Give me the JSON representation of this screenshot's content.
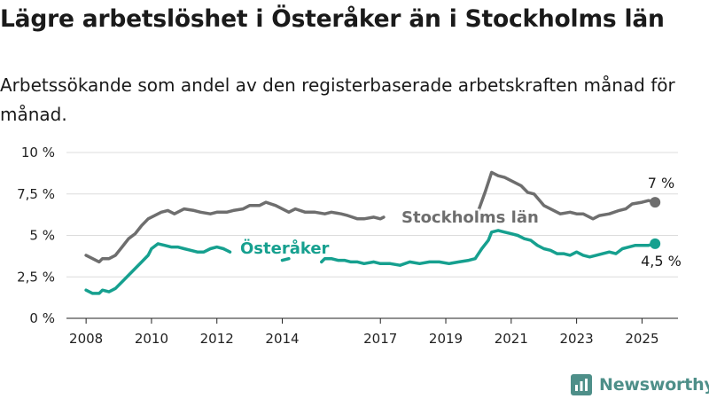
{
  "title": "Lägre arbetslöshet i Österåker än i Stockholms län",
  "subtitle": "Arbetssökande som andel av den registerbaserade arbetskraften månad för månad.",
  "brand": {
    "name": "Newsworthy",
    "icon": "bar-chart-logo-icon",
    "color": "#4e8f89"
  },
  "chart_data": {
    "type": "line",
    "y_ticks": [
      "0 %",
      "2,5 %",
      "5 %",
      "7,5 %",
      "10 %"
    ],
    "y_values": [
      0,
      2.5,
      5,
      7.5,
      10
    ],
    "ylim": [
      0,
      10
    ],
    "x_ticks": [
      "2008",
      "2010",
      "2012",
      "2014",
      "2017",
      "2019",
      "2021",
      "2023",
      "2025"
    ],
    "x_tick_values": [
      2008,
      2010,
      2012,
      2014,
      2017,
      2019,
      2021,
      2023,
      2025
    ],
    "xlim": [
      2007.4,
      2026.1
    ],
    "grid": true,
    "series": [
      {
        "name": "Stockholms län",
        "color": "#6e6e6e",
        "end_label": "7 %",
        "segments": [
          [
            [
              2008.0,
              3.8
            ],
            [
              2008.2,
              3.6
            ],
            [
              2008.4,
              3.4
            ],
            [
              2008.5,
              3.6
            ],
            [
              2008.7,
              3.6
            ],
            [
              2008.9,
              3.8
            ],
            [
              2009.1,
              4.3
            ],
            [
              2009.3,
              4.8
            ],
            [
              2009.5,
              5.1
            ],
            [
              2009.7,
              5.6
            ],
            [
              2009.9,
              6.0
            ],
            [
              2010.1,
              6.2
            ],
            [
              2010.3,
              6.4
            ],
            [
              2010.5,
              6.5
            ],
            [
              2010.7,
              6.3
            ],
            [
              2011.0,
              6.6
            ],
            [
              2011.3,
              6.5
            ],
            [
              2011.5,
              6.4
            ],
            [
              2011.8,
              6.3
            ],
            [
              2012.0,
              6.4
            ],
            [
              2012.3,
              6.4
            ],
            [
              2012.5,
              6.5
            ],
            [
              2012.8,
              6.6
            ],
            [
              2013.0,
              6.8
            ],
            [
              2013.3,
              6.8
            ],
            [
              2013.5,
              7.0
            ],
            [
              2013.8,
              6.8
            ],
            [
              2014.0,
              6.6
            ],
            [
              2014.2,
              6.4
            ],
            [
              2014.4,
              6.6
            ],
            [
              2014.7,
              6.4
            ],
            [
              2015.0,
              6.4
            ],
            [
              2015.3,
              6.3
            ],
            [
              2015.5,
              6.4
            ],
            [
              2015.8,
              6.3
            ],
            [
              2016.0,
              6.2
            ],
            [
              2016.3,
              6.0
            ],
            [
              2016.5,
              6.0
            ],
            [
              2016.8,
              6.1
            ],
            [
              2017.0,
              6.0
            ],
            [
              2017.1,
              6.1
            ]
          ],
          [
            [
              2020.0,
              6.5
            ],
            [
              2020.2,
              7.6
            ],
            [
              2020.4,
              8.8
            ],
            [
              2020.6,
              8.6
            ],
            [
              2020.8,
              8.5
            ],
            [
              2021.0,
              8.3
            ],
            [
              2021.3,
              8.0
            ],
            [
              2021.5,
              7.6
            ],
            [
              2021.7,
              7.5
            ],
            [
              2022.0,
              6.8
            ],
            [
              2022.2,
              6.6
            ],
            [
              2022.5,
              6.3
            ],
            [
              2022.8,
              6.4
            ],
            [
              2023.0,
              6.3
            ],
            [
              2023.2,
              6.3
            ],
            [
              2023.5,
              6.0
            ],
            [
              2023.7,
              6.2
            ],
            [
              2024.0,
              6.3
            ],
            [
              2024.3,
              6.5
            ],
            [
              2024.5,
              6.6
            ],
            [
              2024.7,
              6.9
            ],
            [
              2025.0,
              7.0
            ],
            [
              2025.2,
              7.1
            ],
            [
              2025.4,
              7.0
            ]
          ]
        ]
      },
      {
        "name": "Österåker",
        "color": "#16a08f",
        "end_label": "4,5 %",
        "segments": [
          [
            [
              2008.0,
              1.7
            ],
            [
              2008.2,
              1.5
            ],
            [
              2008.4,
              1.5
            ],
            [
              2008.5,
              1.7
            ],
            [
              2008.7,
              1.6
            ],
            [
              2008.9,
              1.8
            ],
            [
              2009.1,
              2.2
            ],
            [
              2009.3,
              2.6
            ],
            [
              2009.5,
              3.0
            ],
            [
              2009.7,
              3.4
            ],
            [
              2009.9,
              3.8
            ],
            [
              2010.0,
              4.2
            ],
            [
              2010.2,
              4.5
            ],
            [
              2010.4,
              4.4
            ],
            [
              2010.6,
              4.3
            ],
            [
              2010.8,
              4.3
            ],
            [
              2011.0,
              4.2
            ],
            [
              2011.2,
              4.1
            ],
            [
              2011.4,
              4.0
            ],
            [
              2011.6,
              4.0
            ],
            [
              2011.8,
              4.2
            ],
            [
              2012.0,
              4.3
            ],
            [
              2012.2,
              4.2
            ],
            [
              2012.4,
              4.0
            ]
          ],
          [
            [
              2014.0,
              3.5
            ],
            [
              2014.2,
              3.6
            ]
          ],
          [
            [
              2015.2,
              3.4
            ],
            [
              2015.3,
              3.6
            ],
            [
              2015.5,
              3.6
            ],
            [
              2015.7,
              3.5
            ],
            [
              2015.9,
              3.5
            ],
            [
              2016.1,
              3.4
            ],
            [
              2016.3,
              3.4
            ],
            [
              2016.5,
              3.3
            ],
            [
              2016.8,
              3.4
            ],
            [
              2017.0,
              3.3
            ],
            [
              2017.3,
              3.3
            ],
            [
              2017.6,
              3.2
            ],
            [
              2017.9,
              3.4
            ],
            [
              2018.2,
              3.3
            ],
            [
              2018.5,
              3.4
            ],
            [
              2018.8,
              3.4
            ],
            [
              2019.1,
              3.3
            ],
            [
              2019.4,
              3.4
            ],
            [
              2019.7,
              3.5
            ],
            [
              2019.9,
              3.6
            ],
            [
              2020.1,
              4.2
            ],
            [
              2020.3,
              4.7
            ],
            [
              2020.4,
              5.2
            ],
            [
              2020.6,
              5.3
            ],
            [
              2020.8,
              5.2
            ],
            [
              2021.0,
              5.1
            ],
            [
              2021.2,
              5.0
            ],
            [
              2021.4,
              4.8
            ],
            [
              2021.6,
              4.7
            ],
            [
              2021.8,
              4.4
            ],
            [
              2022.0,
              4.2
            ],
            [
              2022.2,
              4.1
            ],
            [
              2022.4,
              3.9
            ],
            [
              2022.6,
              3.9
            ],
            [
              2022.8,
              3.8
            ],
            [
              2023.0,
              4.0
            ],
            [
              2023.2,
              3.8
            ],
            [
              2023.4,
              3.7
            ],
            [
              2023.6,
              3.8
            ],
            [
              2023.8,
              3.9
            ],
            [
              2024.0,
              4.0
            ],
            [
              2024.2,
              3.9
            ],
            [
              2024.4,
              4.2
            ],
            [
              2024.6,
              4.3
            ],
            [
              2024.8,
              4.4
            ],
            [
              2025.0,
              4.4
            ],
            [
              2025.2,
              4.4
            ],
            [
              2025.4,
              4.5
            ]
          ]
        ]
      }
    ]
  }
}
